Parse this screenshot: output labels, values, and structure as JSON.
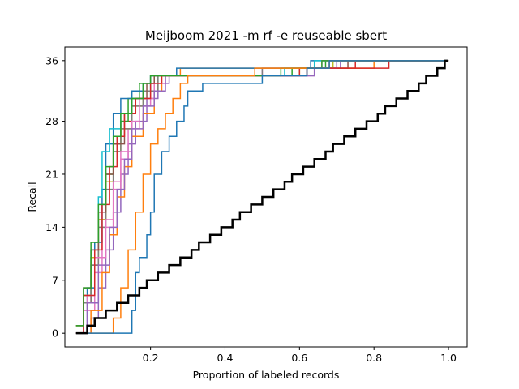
{
  "chart_data": {
    "type": "line",
    "title": "Meijboom 2021 -m rf -e reuseable sbert",
    "xlabel": "Proportion of labeled records",
    "ylabel": "Recall",
    "xlim": [
      -0.03,
      1.05
    ],
    "ylim": [
      -1.8,
      37.8
    ],
    "x_ticks": [
      0.2,
      0.4,
      0.6,
      0.8,
      1.0
    ],
    "x_tick_labels": [
      "0.2",
      "0.4",
      "0.6",
      "0.8",
      "1.0"
    ],
    "y_ticks": [
      0,
      7,
      14,
      21,
      28,
      36
    ],
    "y_tick_labels": [
      "0",
      "7",
      "14",
      "21",
      "28",
      "36"
    ],
    "grid": false,
    "total_relevant": 36,
    "palette": [
      "#1f77b4",
      "#ff7f0e",
      "#2ca02c",
      "#d62728",
      "#9467bd",
      "#8c564b",
      "#e377c2",
      "#7f7f7f",
      "#bcbd22",
      "#17becf"
    ],
    "series": [
      {
        "color": "#1f77b4",
        "points": [
          [
            0.0,
            0
          ],
          [
            0.14,
            0
          ],
          [
            0.15,
            3
          ],
          [
            0.16,
            8
          ],
          [
            0.17,
            10
          ],
          [
            0.19,
            13
          ],
          [
            0.2,
            16
          ],
          [
            0.21,
            21
          ],
          [
            0.23,
            24
          ],
          [
            0.25,
            26
          ],
          [
            0.27,
            28
          ],
          [
            0.29,
            30
          ],
          [
            0.3,
            32
          ],
          [
            0.34,
            33
          ],
          [
            0.5,
            34
          ],
          [
            0.62,
            35
          ],
          [
            0.68,
            36
          ],
          [
            1.0,
            36
          ]
        ]
      },
      {
        "color": "#ff7f0e",
        "points": [
          [
            0.0,
            0
          ],
          [
            0.1,
            2
          ],
          [
            0.12,
            6
          ],
          [
            0.14,
            11
          ],
          [
            0.16,
            16
          ],
          [
            0.18,
            21
          ],
          [
            0.2,
            25
          ],
          [
            0.22,
            27
          ],
          [
            0.24,
            29
          ],
          [
            0.26,
            31
          ],
          [
            0.28,
            33
          ],
          [
            0.3,
            34
          ],
          [
            0.42,
            34
          ],
          [
            0.48,
            35
          ],
          [
            0.68,
            36
          ],
          [
            1.0,
            36
          ]
        ]
      },
      {
        "color": "#2ca02c",
        "points": [
          [
            0.0,
            1
          ],
          [
            0.02,
            6
          ],
          [
            0.04,
            12
          ],
          [
            0.06,
            17
          ],
          [
            0.08,
            22
          ],
          [
            0.1,
            26
          ],
          [
            0.12,
            29
          ],
          [
            0.15,
            31
          ],
          [
            0.18,
            33
          ],
          [
            0.2,
            34
          ],
          [
            0.55,
            35
          ],
          [
            0.66,
            36
          ],
          [
            1.0,
            36
          ]
        ]
      },
      {
        "color": "#d62728",
        "points": [
          [
            0.0,
            0
          ],
          [
            0.02,
            5
          ],
          [
            0.05,
            11
          ],
          [
            0.07,
            17
          ],
          [
            0.09,
            22
          ],
          [
            0.11,
            26
          ],
          [
            0.13,
            29
          ],
          [
            0.16,
            31
          ],
          [
            0.2,
            33
          ],
          [
            0.23,
            34
          ],
          [
            0.6,
            35
          ],
          [
            0.84,
            36
          ],
          [
            1.0,
            36
          ]
        ]
      },
      {
        "color": "#9467bd",
        "points": [
          [
            0.0,
            0
          ],
          [
            0.03,
            4
          ],
          [
            0.06,
            9
          ],
          [
            0.09,
            14
          ],
          [
            0.11,
            19
          ],
          [
            0.13,
            23
          ],
          [
            0.15,
            27
          ],
          [
            0.18,
            30
          ],
          [
            0.21,
            32
          ],
          [
            0.24,
            34
          ],
          [
            0.64,
            35
          ],
          [
            0.7,
            36
          ],
          [
            1.0,
            36
          ]
        ]
      },
      {
        "color": "#8c564b",
        "points": [
          [
            0.0,
            1
          ],
          [
            0.02,
            6
          ],
          [
            0.04,
            11
          ],
          [
            0.06,
            16
          ],
          [
            0.08,
            21
          ],
          [
            0.1,
            25
          ],
          [
            0.13,
            29
          ],
          [
            0.16,
            31
          ],
          [
            0.19,
            33
          ],
          [
            0.21,
            34
          ],
          [
            0.62,
            35
          ],
          [
            0.73,
            36
          ],
          [
            1.0,
            36
          ]
        ]
      },
      {
        "color": "#e377c2",
        "points": [
          [
            0.0,
            0
          ],
          [
            0.03,
            5
          ],
          [
            0.05,
            10
          ],
          [
            0.08,
            15
          ],
          [
            0.1,
            20
          ],
          [
            0.12,
            24
          ],
          [
            0.15,
            28
          ],
          [
            0.17,
            31
          ],
          [
            0.21,
            33
          ],
          [
            0.24,
            34
          ],
          [
            0.64,
            35
          ],
          [
            0.66,
            36
          ],
          [
            1.0,
            36
          ]
        ]
      },
      {
        "color": "#7f7f7f",
        "points": [
          [
            0.0,
            0
          ],
          [
            0.02,
            4
          ],
          [
            0.04,
            9
          ],
          [
            0.06,
            14
          ],
          [
            0.08,
            19
          ],
          [
            0.1,
            24
          ],
          [
            0.12,
            27
          ],
          [
            0.15,
            30
          ],
          [
            0.18,
            32
          ],
          [
            0.22,
            34
          ],
          [
            0.5,
            35
          ],
          [
            0.7,
            36
          ],
          [
            1.0,
            36
          ]
        ]
      },
      {
        "color": "#bcbd22",
        "points": [
          [
            0.0,
            1
          ],
          [
            0.02,
            5
          ],
          [
            0.04,
            10
          ],
          [
            0.06,
            15
          ],
          [
            0.08,
            20
          ],
          [
            0.1,
            24
          ],
          [
            0.12,
            27
          ],
          [
            0.15,
            30
          ],
          [
            0.18,
            32
          ],
          [
            0.22,
            34
          ],
          [
            0.6,
            35
          ],
          [
            0.69,
            36
          ],
          [
            1.0,
            36
          ]
        ]
      },
      {
        "color": "#17becf",
        "points": [
          [
            0.0,
            0
          ],
          [
            0.02,
            5
          ],
          [
            0.04,
            11
          ],
          [
            0.06,
            18
          ],
          [
            0.07,
            24
          ],
          [
            0.09,
            27
          ],
          [
            0.12,
            29
          ],
          [
            0.15,
            31
          ],
          [
            0.18,
            33
          ],
          [
            0.22,
            34
          ],
          [
            0.56,
            35
          ],
          [
            0.64,
            36
          ],
          [
            1.0,
            36
          ]
        ]
      },
      {
        "color": "#1f77b4",
        "points": [
          [
            0.0,
            0
          ],
          [
            0.03,
            6
          ],
          [
            0.05,
            12
          ],
          [
            0.07,
            19
          ],
          [
            0.08,
            25
          ],
          [
            0.1,
            29
          ],
          [
            0.12,
            31
          ],
          [
            0.15,
            32
          ],
          [
            0.2,
            34
          ],
          [
            0.27,
            35
          ],
          [
            0.62,
            35
          ],
          [
            0.63,
            36
          ],
          [
            1.0,
            36
          ]
        ]
      },
      {
        "color": "#ff7f0e",
        "points": [
          [
            0.0,
            0
          ],
          [
            0.04,
            3
          ],
          [
            0.07,
            8
          ],
          [
            0.09,
            13
          ],
          [
            0.11,
            18
          ],
          [
            0.13,
            22
          ],
          [
            0.15,
            26
          ],
          [
            0.18,
            29
          ],
          [
            0.21,
            32
          ],
          [
            0.23,
            34
          ],
          [
            0.28,
            35
          ],
          [
            0.73,
            35
          ],
          [
            0.8,
            36
          ],
          [
            1.0,
            36
          ]
        ]
      },
      {
        "color": "#2ca02c",
        "points": [
          [
            0.0,
            1
          ],
          [
            0.02,
            5
          ],
          [
            0.04,
            10
          ],
          [
            0.06,
            16
          ],
          [
            0.08,
            21
          ],
          [
            0.1,
            25
          ],
          [
            0.12,
            28
          ],
          [
            0.14,
            31
          ],
          [
            0.17,
            33
          ],
          [
            0.2,
            34
          ],
          [
            0.58,
            35
          ],
          [
            0.67,
            36
          ],
          [
            1.0,
            36
          ]
        ]
      },
      {
        "color": "#d62728",
        "points": [
          [
            0.0,
            0
          ],
          [
            0.02,
            4
          ],
          [
            0.04,
            9
          ],
          [
            0.06,
            15
          ],
          [
            0.08,
            20
          ],
          [
            0.1,
            25
          ],
          [
            0.12,
            28
          ],
          [
            0.15,
            31
          ],
          [
            0.18,
            33
          ],
          [
            0.21,
            34
          ],
          [
            0.62,
            35
          ],
          [
            0.75,
            36
          ],
          [
            1.0,
            36
          ]
        ]
      },
      {
        "color": "#e377c2",
        "points": [
          [
            0.0,
            0
          ],
          [
            0.02,
            3
          ],
          [
            0.05,
            8
          ],
          [
            0.07,
            14
          ],
          [
            0.1,
            19
          ],
          [
            0.12,
            23
          ],
          [
            0.14,
            27
          ],
          [
            0.17,
            30
          ],
          [
            0.2,
            32
          ],
          [
            0.23,
            34
          ],
          [
            0.5,
            35
          ],
          [
            0.68,
            36
          ],
          [
            1.0,
            36
          ]
        ]
      },
      {
        "color": "#9467bd",
        "points": [
          [
            0.0,
            0
          ],
          [
            0.04,
            2
          ],
          [
            0.06,
            6
          ],
          [
            0.08,
            11
          ],
          [
            0.1,
            16
          ],
          [
            0.12,
            21
          ],
          [
            0.14,
            25
          ],
          [
            0.16,
            28
          ],
          [
            0.19,
            31
          ],
          [
            0.22,
            33
          ],
          [
            0.25,
            34
          ],
          [
            0.62,
            35
          ],
          [
            0.71,
            36
          ],
          [
            1.0,
            36
          ]
        ]
      },
      {
        "color": "#000000",
        "baseline": true,
        "points": [
          [
            0.0,
            0
          ],
          [
            0.03,
            1
          ],
          [
            0.05,
            2
          ],
          [
            0.08,
            3
          ],
          [
            0.11,
            4
          ],
          [
            0.14,
            5
          ],
          [
            0.17,
            6
          ],
          [
            0.19,
            7
          ],
          [
            0.22,
            8
          ],
          [
            0.25,
            9
          ],
          [
            0.28,
            10
          ],
          [
            0.31,
            11
          ],
          [
            0.33,
            12
          ],
          [
            0.36,
            13
          ],
          [
            0.39,
            14
          ],
          [
            0.42,
            15
          ],
          [
            0.44,
            16
          ],
          [
            0.47,
            17
          ],
          [
            0.5,
            18
          ],
          [
            0.53,
            19
          ],
          [
            0.56,
            20
          ],
          [
            0.58,
            21
          ],
          [
            0.61,
            22
          ],
          [
            0.64,
            23
          ],
          [
            0.67,
            24
          ],
          [
            0.69,
            25
          ],
          [
            0.72,
            26
          ],
          [
            0.75,
            27
          ],
          [
            0.78,
            28
          ],
          [
            0.81,
            29
          ],
          [
            0.83,
            30
          ],
          [
            0.86,
            31
          ],
          [
            0.89,
            32
          ],
          [
            0.92,
            33
          ],
          [
            0.94,
            34
          ],
          [
            0.97,
            35
          ],
          [
            0.99,
            36
          ],
          [
            1.0,
            36
          ]
        ]
      }
    ]
  }
}
